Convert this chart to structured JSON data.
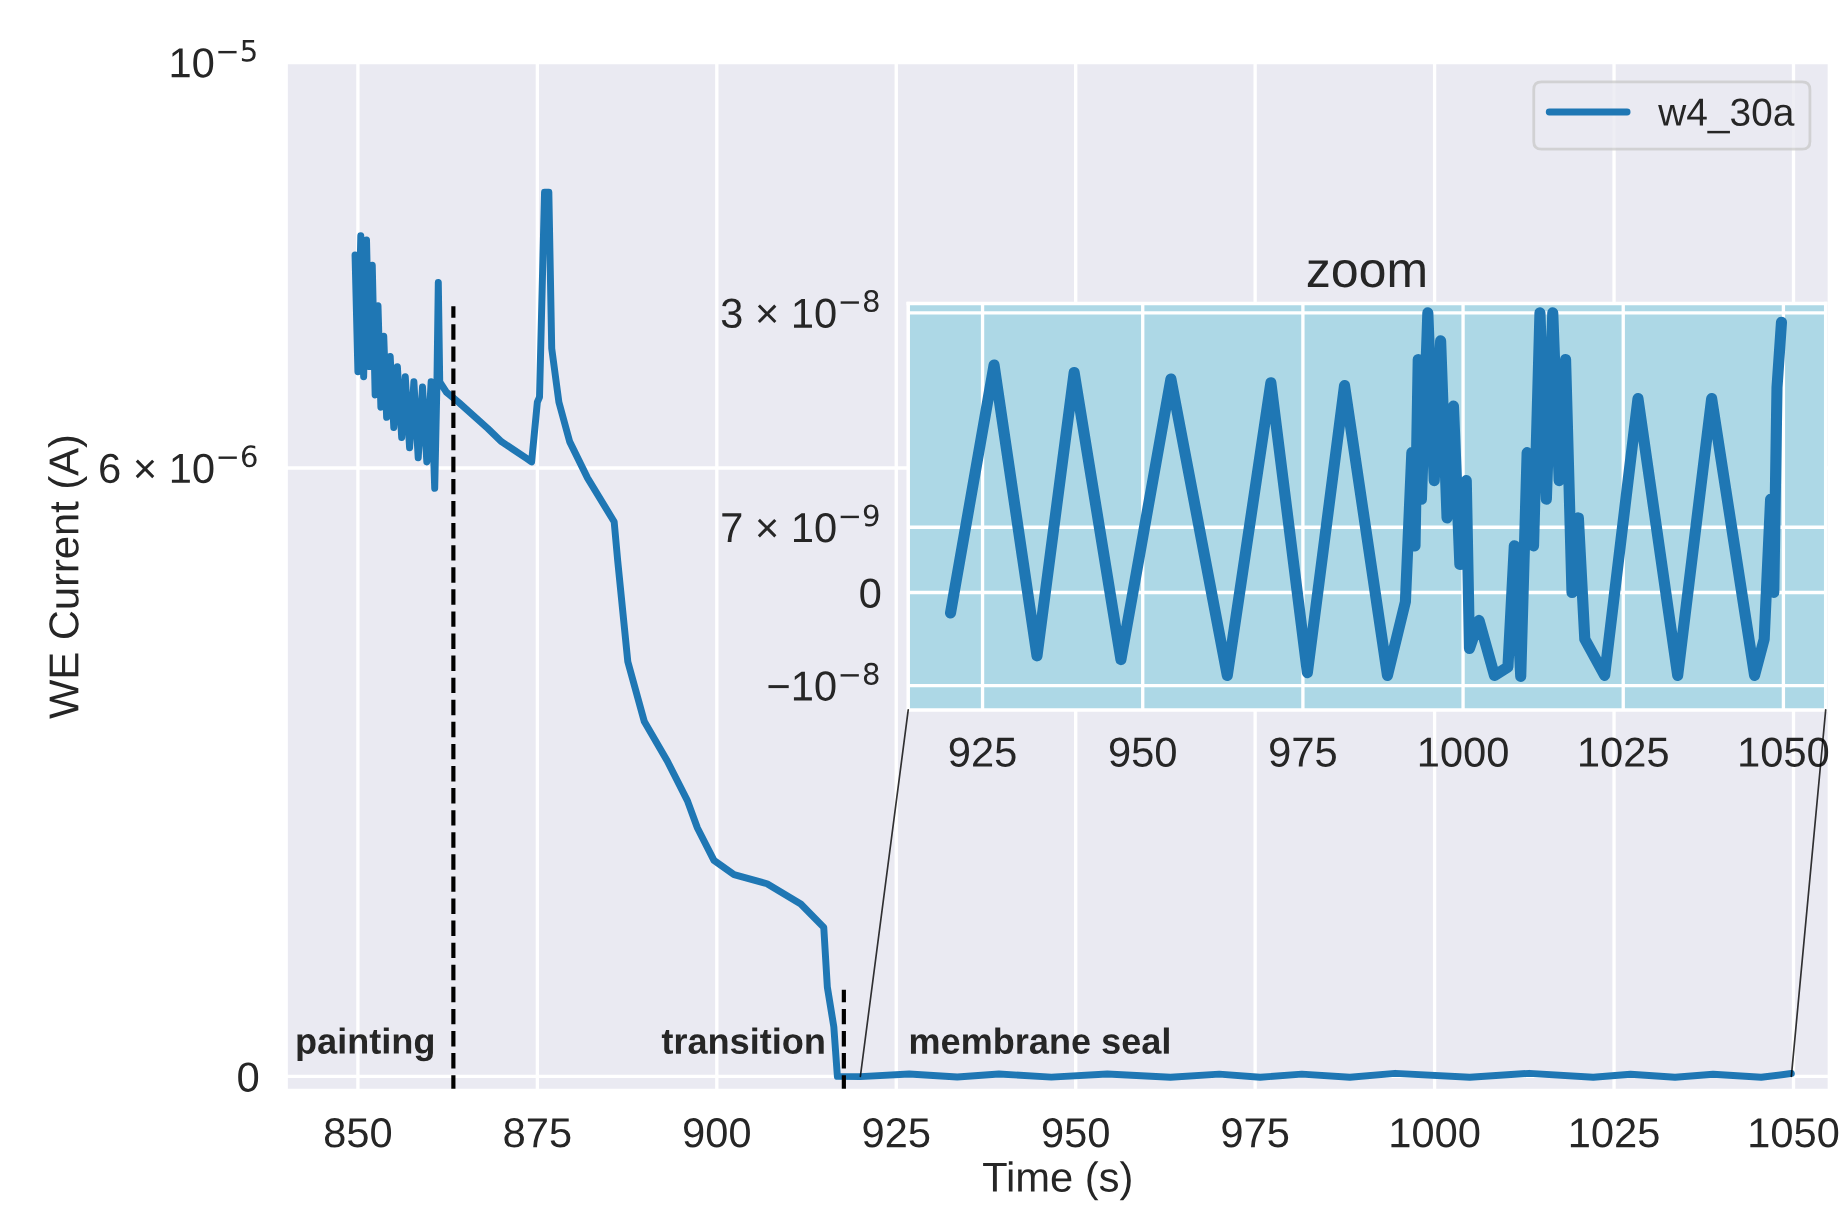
{
  "chart_data": [
    {
      "type": "line",
      "xlabel": "Time (s)",
      "ylabel": "WE Current (A)",
      "xlim": [
        840,
        1055
      ],
      "xticks": [
        850,
        875,
        900,
        925,
        950,
        975,
        1000,
        1025,
        1050
      ],
      "ylim": [
        -1.4e-07,
        1e-05
      ],
      "yticks": [
        0,
        {
          "value": 6e-06,
          "label": "6 × 10$^{−6}$"
        },
        {
          "value": 1e-05,
          "label": "10$^{−5}$"
        }
      ],
      "grid": true,
      "legend": "top right",
      "series": [
        {
          "name": "w4_30a",
          "color": "#1f77b4",
          "x": [
            849.6,
            850.0,
            850.4,
            850.8,
            851.2,
            851.6,
            852.0,
            852.4,
            852.8,
            853.2,
            853.6,
            854.0,
            854.5,
            855.0,
            855.5,
            856.1,
            856.6,
            857.2,
            857.8,
            858.4,
            859.0,
            859.6,
            860.2,
            860.7,
            861.0,
            861.2,
            861.4,
            862.3,
            864.0,
            868.1,
            870.0,
            873.6,
            874.2,
            875.0,
            875.3,
            876.0,
            876.6,
            877.0,
            878.0,
            879.5,
            882.0,
            885.7,
            886.2,
            887.6,
            889.9,
            893.1,
            895.9,
            897.3,
            899.6,
            902.4,
            907.0,
            911.7,
            914.9,
            915.4,
            916.3,
            916.8,
            920,
            926.8,
            933.5,
            939.3,
            946.6,
            954.4,
            963.2,
            970.0,
            975.7,
            981.5,
            988.2,
            994.5,
            1004.9,
            1013.2,
            1022.1,
            1027.3,
            1033.5,
            1038.8,
            1045.5,
            1049.7
          ],
          "values": [
            8.1e-06,
            6.95e-06,
            8.29e-06,
            6.9e-06,
            8.25e-06,
            7e-06,
            8e-06,
            6.72e-06,
            7.6e-06,
            6.6e-06,
            7.3e-06,
            6.5e-06,
            7.1e-06,
            6.4e-06,
            7e-06,
            6.3e-06,
            6.9e-06,
            6.2e-06,
            6.85e-06,
            6.1e-06,
            6.8e-06,
            6.06e-06,
            6.85e-06,
            5.8e-06,
            6.8e-06,
            7.83e-06,
            6.85e-06,
            6.75e-06,
            6.65e-06,
            6.39e-06,
            6.26e-06,
            6.09e-06,
            6.06e-06,
            6.65e-06,
            6.7e-06,
            8.72e-06,
            8.72e-06,
            7.18e-06,
            6.65e-06,
            6.26e-06,
            5.9e-06,
            5.47e-06,
            5.08e-06,
            4.09e-06,
            3.5e-06,
            3.11e-06,
            2.72e-06,
            2.45e-06,
            2.13e-06,
            1.99e-06,
            1.9e-06,
            1.7e-06,
            1.47e-06,
            8.8e-07,
            4.9e-07,
            0,
            -2.2e-09,
            2.44e-08,
            -6.8e-09,
            2.36e-08,
            -7.2e-09,
            2.29e-08,
            -8.9e-09,
            2.25e-08,
            -8.6e-09,
            2.22e-08,
            -8.9e-09,
            3e-08,
            -8.9e-09,
            3e-08,
            -8.9e-09,
            2.08e-08,
            -8.9e-09,
            2.08e-08,
            -8.9e-09,
            2.9e-08
          ]
        }
      ],
      "ref_lines": [
        {
          "axis": "x",
          "value": 863.3,
          "color": "#000000",
          "line_style": "dashed"
        },
        {
          "axis": "x",
          "value": 917.7,
          "color": "#000000",
          "line_style": "dashed"
        }
      ],
      "annotations": [
        "painting",
        "transition",
        "membrane seal"
      ]
    },
    {
      "type": "line",
      "title": "zoom",
      "xlim": [
        913.4,
        1056.6
      ],
      "xticks": [
        925,
        950,
        975,
        1000,
        1025,
        1050
      ],
      "ylim": [
        -1.26e-08,
        3.1e-08
      ],
      "yticks": [
        {
          "value": -1e-08,
          "label": "−10$^{−8}$"
        },
        0,
        {
          "value": 7e-09,
          "label": "7 × 10$^{−9}$"
        },
        {
          "value": 3e-08,
          "label": "3 × 10$^{−8}$"
        }
      ],
      "grid": true,
      "series": [
        {
          "color": "#1f77b4",
          "x": [
            920,
            926.8,
            933.5,
            939.3,
            946.6,
            954.4,
            963.2,
            970.0,
            975.7,
            981.5,
            988.2,
            991,
            992,
            992.5,
            993,
            993.5,
            994.5,
            995.5,
            996.5,
            997.5,
            998.5,
            999.5,
            1000.5,
            1001,
            1002.5,
            1004.9,
            1007,
            1008,
            1009,
            1010,
            1011,
            1012,
            1013,
            1014,
            1015,
            1016,
            1017,
            1018,
            1019,
            1022.1,
            1027.3,
            1033.5,
            1038.8,
            1045.5,
            1047,
            1048,
            1048.5,
            1049,
            1049.7
          ],
          "values": [
            -2.2e-09,
            2.44e-08,
            -6.8e-09,
            2.36e-08,
            -7.2e-09,
            2.29e-08,
            -8.9e-09,
            2.25e-08,
            -8.6e-09,
            2.22e-08,
            -8.9e-09,
            -1e-09,
            1.5e-08,
            5e-09,
            2.5e-08,
            1e-08,
            3e-08,
            1.2e-08,
            2.7e-08,
            8e-09,
            2e-08,
            3e-09,
            1.2e-08,
            -6e-09,
            -3e-09,
            -8.9e-09,
            -8e-09,
            5e-09,
            -9e-09,
            1.5e-08,
            5e-09,
            3e-08,
            1e-08,
            3e-08,
            1.2e-08,
            2.5e-08,
            0,
            8e-09,
            -5e-09,
            -8.9e-09,
            2.08e-08,
            -8.9e-09,
            2.08e-08,
            -8.9e-09,
            -5e-09,
            1e-08,
            0,
            2.2e-08,
            2.9e-08
          ]
        }
      ]
    }
  ]
}
